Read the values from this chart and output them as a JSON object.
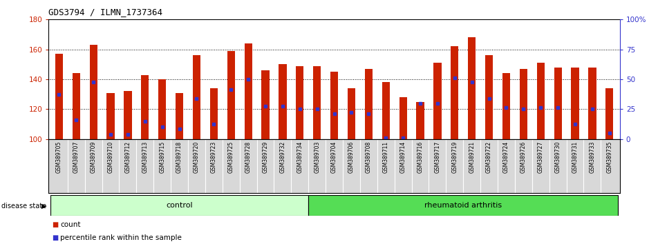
{
  "title": "GDS3794 / ILMN_1737364",
  "categories": [
    "GSM389705",
    "GSM389707",
    "GSM389709",
    "GSM389710",
    "GSM389712",
    "GSM389713",
    "GSM389715",
    "GSM389718",
    "GSM389720",
    "GSM389723",
    "GSM389725",
    "GSM389728",
    "GSM389729",
    "GSM389732",
    "GSM389734",
    "GSM389703",
    "GSM389704",
    "GSM389706",
    "GSM389708",
    "GSM389711",
    "GSM389714",
    "GSM389716",
    "GSM389717",
    "GSM389719",
    "GSM389721",
    "GSM389722",
    "GSM389724",
    "GSM389726",
    "GSM389727",
    "GSM389730",
    "GSM389731",
    "GSM389733",
    "GSM389735"
  ],
  "bar_values": [
    157,
    144,
    163,
    131,
    132,
    143,
    140,
    131,
    156,
    134,
    159,
    164,
    146,
    150,
    149,
    149,
    145,
    134,
    147,
    138,
    128,
    125,
    151,
    162,
    168,
    156,
    144,
    147,
    151,
    148,
    148,
    148,
    134
  ],
  "blue_dot_values": [
    130,
    113,
    138,
    103,
    103,
    112,
    108,
    107,
    127,
    110,
    133,
    140,
    122,
    122,
    120,
    120,
    117,
    118,
    117,
    101,
    101,
    124,
    124,
    141,
    138,
    127,
    121,
    120,
    121,
    121,
    110,
    120,
    104
  ],
  "control_count": 15,
  "rheumatoid_count": 18,
  "ymin": 100,
  "ymax": 180,
  "yticks": [
    100,
    120,
    140,
    160,
    180
  ],
  "y2ticks": [
    0,
    25,
    50,
    75,
    100
  ],
  "y2tick_labels": [
    "0",
    "25",
    "50",
    "75",
    "100%"
  ],
  "bar_color": "#cc2200",
  "blue_color": "#3333cc",
  "control_color": "#ccffcc",
  "ra_color": "#55dd55",
  "label_color_red": "#cc2200",
  "label_color_blue": "#3333cc",
  "bar_width": 0.45
}
